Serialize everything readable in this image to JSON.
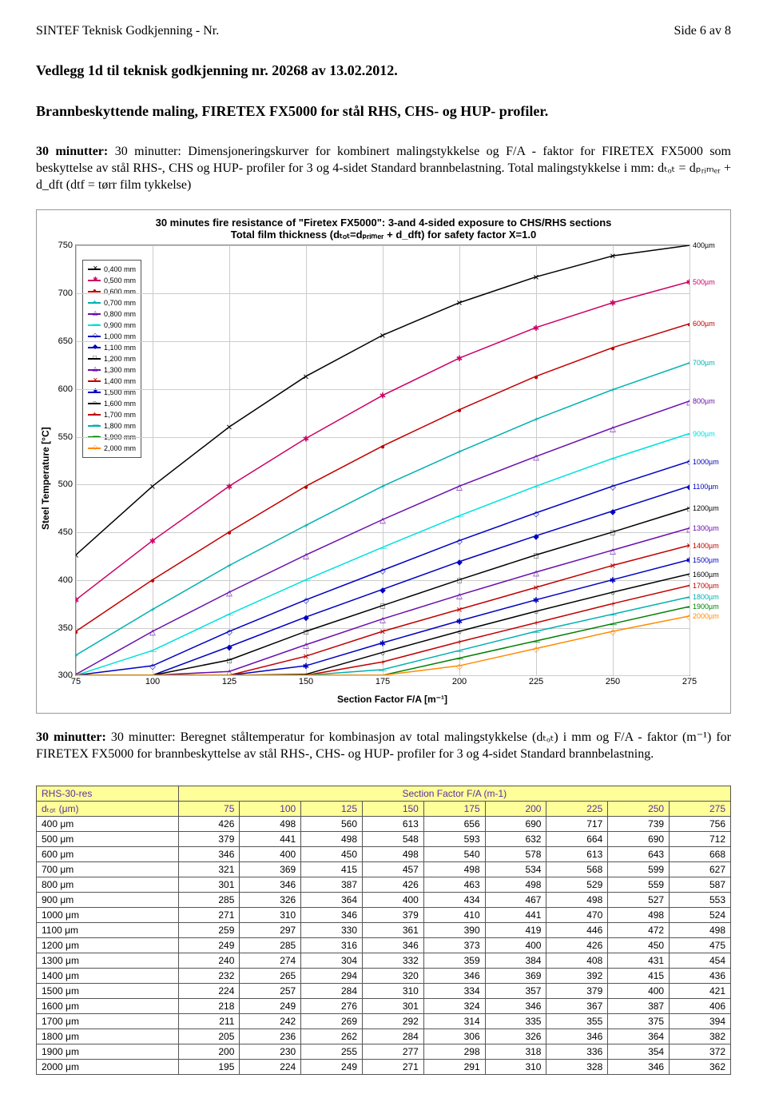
{
  "header": {
    "left": "SINTEF Teknisk Godkjenning  -   Nr.",
    "right": "Side 6 av 8"
  },
  "title1": "Vedlegg 1d til teknisk godkjenning nr. 20268 av 13.02.2012.",
  "title2": "Brannbeskyttende maling, FIRETEX FX5000 for stål RHS, CHS- og HUP- profiler.",
  "para1": "30 minutter: Dimensjoneringskurver for kombinert malingstykkelse og F/A - faktor for FIRETEX FX5000 som beskyttelse av stål RHS-, CHS og HUP- profiler for 3 og 4-sidet Standard brannbelastning. Total malingstykkelse i mm: dₜₒₜ = dₚᵣᵢₘₑᵣ + d_dft (dtf = tørr film tykkelse)",
  "para2": "30 minutter: Beregnet ståltemperatur for kombinasjon av total malingstykkelse (dₜₒₜ) i mm og F/A - faktor (m⁻¹) for FIRETEX FX5000 for brannbeskyttelse av stål RHS-, CHS- og HUP- profiler for 3 og 4-sidet Standard brannbelastning.",
  "chart": {
    "title_line1": "30 minutes fire resistance of \"Firetex FX5000\": 3-and 4-sided exposure to CHS/RHS sections",
    "title_line2": "Total film thickness (dₜₒₜ=dₚᵣᵢₘₑᵣ + d_dft) for safety factor  X=1.0",
    "ylabel": "Steel Temperature [°C]",
    "xlabel": "Section Factor F/A [m⁻¹]",
    "xlim": [
      75,
      275
    ],
    "ylim": [
      300,
      750
    ],
    "xticks": [
      75,
      100,
      125,
      150,
      175,
      200,
      225,
      250,
      275
    ],
    "yticks": [
      300,
      350,
      400,
      450,
      500,
      550,
      600,
      650,
      700,
      750
    ],
    "series": [
      {
        "label": "0,400 mm",
        "color": "#000000",
        "marker": "✕",
        "rlabel": "400µm",
        "values": [
          426,
          498,
          560,
          613,
          656,
          690,
          717,
          739,
          756
        ]
      },
      {
        "label": "0,500 mm",
        "color": "#cc0066",
        "marker": "✱",
        "rlabel": "500µm",
        "values": [
          379,
          441,
          498,
          548,
          593,
          632,
          664,
          690,
          712
        ]
      },
      {
        "label": "0,600 mm",
        "color": "#c00000",
        "marker": "●",
        "rlabel": "600µm",
        "values": [
          346,
          400,
          450,
          498,
          540,
          578,
          613,
          643,
          668
        ]
      },
      {
        "label": "0,700 mm",
        "color": "#00b0b0",
        "marker": "+",
        "rlabel": "700µm",
        "values": [
          321,
          369,
          415,
          457,
          498,
          534,
          568,
          599,
          627
        ]
      },
      {
        "label": "0,800 mm",
        "color": "#6a0dad",
        "marker": "△",
        "rlabel": "800µm",
        "values": [
          301,
          346,
          387,
          426,
          463,
          498,
          529,
          559,
          587
        ]
      },
      {
        "label": "0,900 mm",
        "color": "#00e0e0",
        "marker": "—",
        "rlabel": "900µm",
        "values": [
          285,
          326,
          364,
          400,
          434,
          467,
          498,
          527,
          553
        ]
      },
      {
        "label": "1,000 mm",
        "color": "#0000c0",
        "marker": "◇",
        "rlabel": "1000µm",
        "values": [
          271,
          310,
          346,
          379,
          410,
          441,
          470,
          498,
          524
        ]
      },
      {
        "label": "1,100 mm",
        "color": "#0000c0",
        "marker": "◆",
        "rlabel": "1100µm",
        "values": [
          259,
          297,
          330,
          361,
          390,
          419,
          446,
          472,
          498
        ]
      },
      {
        "label": "1,200 mm",
        "color": "#000000",
        "marker": "□",
        "rlabel": "1200µm",
        "values": [
          249,
          285,
          316,
          346,
          373,
          400,
          426,
          450,
          475
        ]
      },
      {
        "label": "1,300 mm",
        "color": "#6a0dad",
        "marker": "△",
        "rlabel": "1300µm",
        "values": [
          240,
          274,
          304,
          332,
          359,
          384,
          408,
          431,
          454
        ]
      },
      {
        "label": "1,400 mm",
        "color": "#c00000",
        "marker": "✕",
        "rlabel": "1400µm",
        "values": [
          232,
          265,
          294,
          320,
          346,
          369,
          392,
          415,
          436
        ]
      },
      {
        "label": "1,500 mm",
        "color": "#0000c0",
        "marker": "✱",
        "rlabel": "1500µm",
        "values": [
          224,
          257,
          284,
          310,
          334,
          357,
          379,
          400,
          421
        ]
      },
      {
        "label": "1,600 mm",
        "color": "#000000",
        "marker": "○",
        "rlabel": "1600µm",
        "values": [
          218,
          249,
          276,
          301,
          324,
          346,
          367,
          387,
          406
        ]
      },
      {
        "label": "1,700 mm",
        "color": "#c00000",
        "marker": "+",
        "rlabel": "1700µm",
        "values": [
          211,
          242,
          269,
          292,
          314,
          335,
          355,
          375,
          394
        ]
      },
      {
        "label": "1,800 mm",
        "color": "#00b0b0",
        "marker": "—",
        "rlabel": "1800µm",
        "values": [
          205,
          236,
          262,
          284,
          306,
          326,
          346,
          364,
          382
        ]
      },
      {
        "label": "1,900 mm",
        "color": "#008000",
        "marker": "—",
        "rlabel": "1900µm",
        "values": [
          200,
          230,
          255,
          277,
          298,
          318,
          336,
          354,
          372
        ]
      },
      {
        "label": "2,000 mm",
        "color": "#ff8c00",
        "marker": "◇",
        "rlabel": "2000µm",
        "values": [
          195,
          224,
          249,
          271,
          291,
          310,
          328,
          346,
          362
        ]
      }
    ]
  },
  "table": {
    "head_left_top": "RHS-30-res",
    "head_left_bottom": "dₜₒₜ (μm)",
    "head_center": "Section Factor F/A (m-1)",
    "cols": [
      "75",
      "100",
      "125",
      "150",
      "175",
      "200",
      "225",
      "250",
      "275"
    ],
    "rows": [
      {
        "label": "400 μm",
        "vals": [
          426,
          498,
          560,
          613,
          656,
          690,
          717,
          739,
          756
        ]
      },
      {
        "label": "500 μm",
        "vals": [
          379,
          441,
          498,
          548,
          593,
          632,
          664,
          690,
          712
        ]
      },
      {
        "label": "600 μm",
        "vals": [
          346,
          400,
          450,
          498,
          540,
          578,
          613,
          643,
          668
        ]
      },
      {
        "label": "700 μm",
        "vals": [
          321,
          369,
          415,
          457,
          498,
          534,
          568,
          599,
          627
        ]
      },
      {
        "label": "800 μm",
        "vals": [
          301,
          346,
          387,
          426,
          463,
          498,
          529,
          559,
          587
        ]
      },
      {
        "label": "900 μm",
        "vals": [
          285,
          326,
          364,
          400,
          434,
          467,
          498,
          527,
          553
        ]
      },
      {
        "label": "1000 μm",
        "vals": [
          271,
          310,
          346,
          379,
          410,
          441,
          470,
          498,
          524
        ]
      },
      {
        "label": "1100 μm",
        "vals": [
          259,
          297,
          330,
          361,
          390,
          419,
          446,
          472,
          498
        ]
      },
      {
        "label": "1200 μm",
        "vals": [
          249,
          285,
          316,
          346,
          373,
          400,
          426,
          450,
          475
        ]
      },
      {
        "label": "1300 μm",
        "vals": [
          240,
          274,
          304,
          332,
          359,
          384,
          408,
          431,
          454
        ]
      },
      {
        "label": "1400 μm",
        "vals": [
          232,
          265,
          294,
          320,
          346,
          369,
          392,
          415,
          436
        ]
      },
      {
        "label": "1500 μm",
        "vals": [
          224,
          257,
          284,
          310,
          334,
          357,
          379,
          400,
          421
        ]
      },
      {
        "label": "1600 μm",
        "vals": [
          218,
          249,
          276,
          301,
          324,
          346,
          367,
          387,
          406
        ]
      },
      {
        "label": "1700 μm",
        "vals": [
          211,
          242,
          269,
          292,
          314,
          335,
          355,
          375,
          394
        ]
      },
      {
        "label": "1800 μm",
        "vals": [
          205,
          236,
          262,
          284,
          306,
          326,
          346,
          364,
          382
        ]
      },
      {
        "label": "1900 μm",
        "vals": [
          200,
          230,
          255,
          277,
          298,
          318,
          336,
          354,
          372
        ]
      },
      {
        "label": "2000 μm",
        "vals": [
          195,
          224,
          249,
          271,
          291,
          310,
          328,
          346,
          362
        ]
      }
    ]
  }
}
